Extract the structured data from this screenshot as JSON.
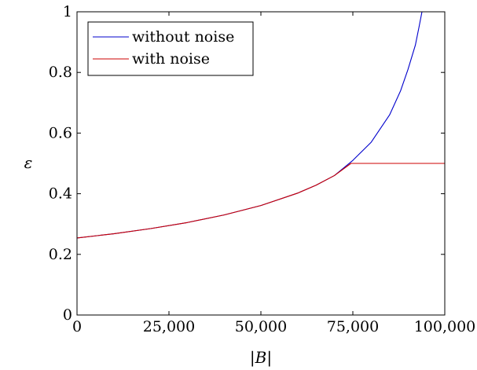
{
  "chart_data": {
    "type": "line",
    "xlabel": "|B|",
    "ylabel": "ε",
    "xlim": [
      0,
      100000
    ],
    "ylim": [
      0,
      1
    ],
    "grid": false,
    "legend_position": "top-left",
    "x_ticks": [
      {
        "value": 0,
        "label": "0"
      },
      {
        "value": 25000,
        "label": "25,000"
      },
      {
        "value": 50000,
        "label": "50,000"
      },
      {
        "value": 75000,
        "label": "75,000"
      },
      {
        "value": 100000,
        "label": "100,000"
      }
    ],
    "y_ticks": [
      {
        "value": 0,
        "label": "0"
      },
      {
        "value": 0.2,
        "label": "0.2"
      },
      {
        "value": 0.4,
        "label": "0.4"
      },
      {
        "value": 0.6,
        "label": "0.6"
      },
      {
        "value": 0.8,
        "label": "0.8"
      },
      {
        "value": 1,
        "label": "1"
      }
    ],
    "series": [
      {
        "name": "without noise",
        "color": "#0000cc",
        "x": [
          0,
          10000,
          20000,
          30000,
          40000,
          50000,
          60000,
          65000,
          70000,
          75000,
          80000,
          85000,
          88000,
          90000,
          92000,
          93000,
          93800
        ],
        "y": [
          0.254,
          0.268,
          0.285,
          0.305,
          0.33,
          0.361,
          0.402,
          0.428,
          0.46,
          0.51,
          0.57,
          0.66,
          0.74,
          0.81,
          0.89,
          0.95,
          1.0
        ]
      },
      {
        "name": "with noise",
        "color": "#cc0000",
        "x": [
          0,
          10000,
          20000,
          30000,
          40000,
          50000,
          60000,
          65000,
          70000,
          74500,
          80000,
          90000,
          100000
        ],
        "y": [
          0.254,
          0.268,
          0.285,
          0.305,
          0.33,
          0.361,
          0.402,
          0.428,
          0.46,
          0.5,
          0.5,
          0.5,
          0.5
        ]
      }
    ]
  }
}
